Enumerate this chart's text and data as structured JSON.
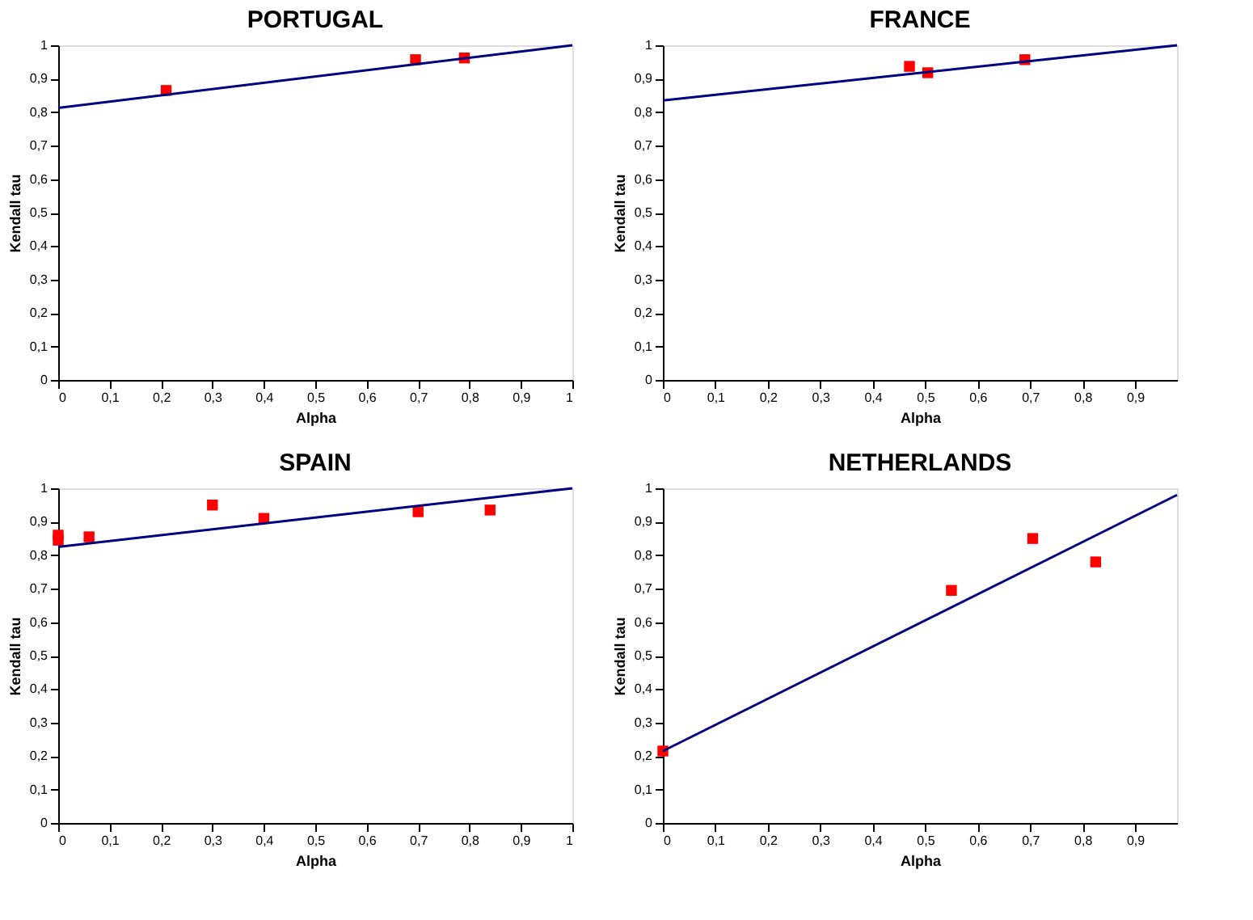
{
  "chart_data": [
    {
      "type": "scatter",
      "title": "PORTUGAL",
      "xlabel": "Alpha",
      "ylabel": "Kendall tau",
      "xlim": [
        0,
        1
      ],
      "ylim": [
        0,
        1
      ],
      "grid": false,
      "xticks": [
        0,
        {
          "value": 0.1,
          "label": "0,1"
        },
        {
          "value": 0.2,
          "label": "0,2"
        },
        {
          "value": 0.3,
          "label": "0,3"
        },
        {
          "value": 0.4,
          "label": "0,4"
        },
        {
          "value": 0.5,
          "label": "0,5"
        },
        {
          "value": 0.6,
          "label": "0,6"
        },
        {
          "value": 0.7,
          "label": "0,7"
        },
        {
          "value": 0.8,
          "label": "0,8"
        },
        {
          "value": 0.9,
          "label": "0,9"
        },
        1
      ],
      "yticks": [
        0,
        {
          "value": 0.1,
          "label": "0,1"
        },
        {
          "value": 0.2,
          "label": "0,2"
        },
        {
          "value": 0.3,
          "label": "0,3"
        },
        {
          "value": 0.4,
          "label": "0,4"
        },
        {
          "value": 0.5,
          "label": "0,5"
        },
        {
          "value": 0.6,
          "label": "0,6"
        },
        {
          "value": 0.7,
          "label": "0,7"
        },
        {
          "value": 0.8,
          "label": "0,8"
        },
        {
          "value": 0.9,
          "label": "0,9"
        },
        1
      ],
      "series": [
        {
          "type": "scatter",
          "marker": "square",
          "color": "#ff0000",
          "x": [
            0.21,
            0.695,
            0.79
          ],
          "values": [
            0.865,
            0.957,
            0.962
          ]
        },
        {
          "type": "line",
          "line_style": "solid",
          "color": "#000080",
          "x": [
            0,
            1
          ],
          "values": [
            0.813,
            1.0
          ]
        }
      ]
    },
    {
      "type": "scatter",
      "title": "FRANCE",
      "xlabel": "Alpha",
      "ylabel": "Kendall tau",
      "xlim": [
        0,
        0.98
      ],
      "ylim": [
        0,
        1
      ],
      "grid": false,
      "xticks": [
        0,
        {
          "value": 0.1,
          "label": "0,1"
        },
        {
          "value": 0.2,
          "label": "0,2"
        },
        {
          "value": 0.3,
          "label": "0,3"
        },
        {
          "value": 0.4,
          "label": "0,4"
        },
        {
          "value": 0.5,
          "label": "0,5"
        },
        {
          "value": 0.6,
          "label": "0,6"
        },
        {
          "value": 0.7,
          "label": "0,7"
        },
        {
          "value": 0.8,
          "label": "0,8"
        },
        {
          "value": 0.9,
          "label": "0,9"
        }
      ],
      "yticks": [
        0,
        {
          "value": 0.1,
          "label": "0,1"
        },
        {
          "value": 0.2,
          "label": "0,2"
        },
        {
          "value": 0.3,
          "label": "0,3"
        },
        {
          "value": 0.4,
          "label": "0,4"
        },
        {
          "value": 0.5,
          "label": "0,5"
        },
        {
          "value": 0.6,
          "label": "0,6"
        },
        {
          "value": 0.7,
          "label": "0,7"
        },
        {
          "value": 0.8,
          "label": "0,8"
        },
        {
          "value": 0.9,
          "label": "0,9"
        },
        1
      ],
      "series": [
        {
          "type": "scatter",
          "marker": "square",
          "color": "#ff0000",
          "x": [
            0.47,
            0.505,
            0.69
          ],
          "values": [
            0.937,
            0.918,
            0.957
          ]
        },
        {
          "type": "line",
          "line_style": "solid",
          "color": "#000080",
          "x": [
            0,
            0.98
          ],
          "values": [
            0.835,
            1.0
          ]
        }
      ]
    },
    {
      "type": "scatter",
      "title": "SPAIN",
      "xlabel": "Alpha",
      "ylabel": "Kendall tau",
      "xlim": [
        0,
        1
      ],
      "ylim": [
        0,
        1
      ],
      "grid": false,
      "xticks": [
        0,
        {
          "value": 0.1,
          "label": "0,1"
        },
        {
          "value": 0.2,
          "label": "0,2"
        },
        {
          "value": 0.3,
          "label": "0,3"
        },
        {
          "value": 0.4,
          "label": "0,4"
        },
        {
          "value": 0.5,
          "label": "0,5"
        },
        {
          "value": 0.6,
          "label": "0,6"
        },
        {
          "value": 0.7,
          "label": "0,7"
        },
        {
          "value": 0.8,
          "label": "0,8"
        },
        {
          "value": 0.9,
          "label": "0,9"
        },
        1
      ],
      "yticks": [
        0,
        {
          "value": 0.1,
          "label": "0,1"
        },
        {
          "value": 0.2,
          "label": "0,2"
        },
        {
          "value": 0.3,
          "label": "0,3"
        },
        {
          "value": 0.4,
          "label": "0,4"
        },
        {
          "value": 0.5,
          "label": "0,5"
        },
        {
          "value": 0.6,
          "label": "0,6"
        },
        {
          "value": 0.7,
          "label": "0,7"
        },
        {
          "value": 0.8,
          "label": "0,8"
        },
        {
          "value": 0.9,
          "label": "0,9"
        },
        1
      ],
      "series": [
        {
          "type": "scatter",
          "marker": "square",
          "color": "#ff0000",
          "x": [
            0,
            0,
            0.06,
            0.3,
            0.4,
            0.7,
            0.84
          ],
          "values": [
            0.845,
            0.86,
            0.855,
            0.95,
            0.91,
            0.93,
            0.935
          ]
        },
        {
          "type": "line",
          "line_style": "solid",
          "color": "#000080",
          "x": [
            0,
            1
          ],
          "values": [
            0.825,
            1.0
          ]
        }
      ]
    },
    {
      "type": "scatter",
      "title": "NETHERLANDS",
      "xlabel": "Alpha",
      "ylabel": "Kendall tau",
      "xlim": [
        0,
        0.98
      ],
      "ylim": [
        0,
        1
      ],
      "grid": false,
      "xticks": [
        0,
        {
          "value": 0.1,
          "label": "0,1"
        },
        {
          "value": 0.2,
          "label": "0,2"
        },
        {
          "value": 0.3,
          "label": "0,3"
        },
        {
          "value": 0.4,
          "label": "0,4"
        },
        {
          "value": 0.5,
          "label": "0,5"
        },
        {
          "value": 0.6,
          "label": "0,6"
        },
        {
          "value": 0.7,
          "label": "0,7"
        },
        {
          "value": 0.8,
          "label": "0,8"
        },
        {
          "value": 0.9,
          "label": "0,9"
        }
      ],
      "yticks": [
        0,
        {
          "value": 0.1,
          "label": "0,1"
        },
        {
          "value": 0.2,
          "label": "0,2"
        },
        {
          "value": 0.3,
          "label": "0,3"
        },
        {
          "value": 0.4,
          "label": "0,4"
        },
        {
          "value": 0.5,
          "label": "0,5"
        },
        {
          "value": 0.6,
          "label": "0,6"
        },
        {
          "value": 0.7,
          "label": "0,7"
        },
        {
          "value": 0.8,
          "label": "0,8"
        },
        {
          "value": 0.9,
          "label": "0,9"
        },
        1
      ],
      "series": [
        {
          "type": "scatter",
          "marker": "square",
          "color": "#ff0000",
          "x": [
            0,
            0.55,
            0.705,
            0.825
          ],
          "values": [
            0.215,
            0.695,
            0.85,
            0.78
          ]
        },
        {
          "type": "line",
          "line_style": "solid",
          "color": "#000080",
          "x": [
            0,
            0.98
          ],
          "values": [
            0.215,
            0.98
          ]
        }
      ]
    }
  ]
}
